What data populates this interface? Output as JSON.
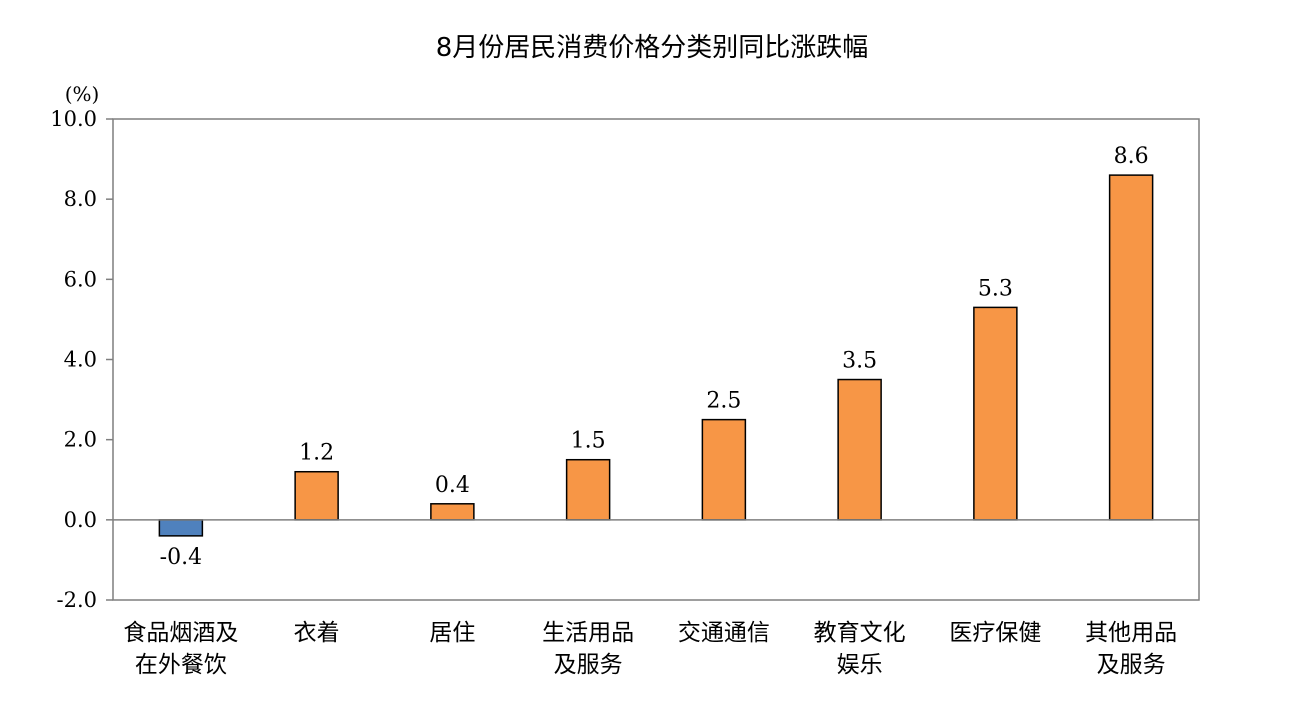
{
  "chart_data": {
    "type": "bar",
    "title": "8月份居民消费价格分类别同比涨跌幅",
    "unit_label": "(%)",
    "categories": [
      [
        "食品烟酒及",
        "在外餐饮"
      ],
      [
        "衣着"
      ],
      [
        "居住"
      ],
      [
        "生活用品",
        "及服务"
      ],
      [
        "交通通信"
      ],
      [
        "教育文化",
        "娱乐"
      ],
      [
        "医疗保健"
      ],
      [
        "其他用品",
        "及服务"
      ]
    ],
    "values": [
      -0.4,
      1.2,
      0.4,
      1.5,
      2.5,
      3.5,
      5.3,
      8.6
    ],
    "value_labels": [
      "-0.4",
      "1.2",
      "0.4",
      "1.5",
      "2.5",
      "3.5",
      "5.3",
      "8.6"
    ],
    "ylim": [
      -2.0,
      10.0
    ],
    "yticks": [
      -2.0,
      0.0,
      2.0,
      4.0,
      6.0,
      8.0,
      10.0
    ],
    "ytick_labels": [
      "-2.0",
      "0.0",
      "2.0",
      "4.0",
      "6.0",
      "8.0",
      "10.0"
    ],
    "xlabel": "",
    "ylabel": "",
    "grid": false,
    "colors": {
      "positive": "#F79646",
      "negative": "#4F81BD",
      "bar_stroke": "#000000",
      "axis": "#7F7F7F"
    }
  }
}
